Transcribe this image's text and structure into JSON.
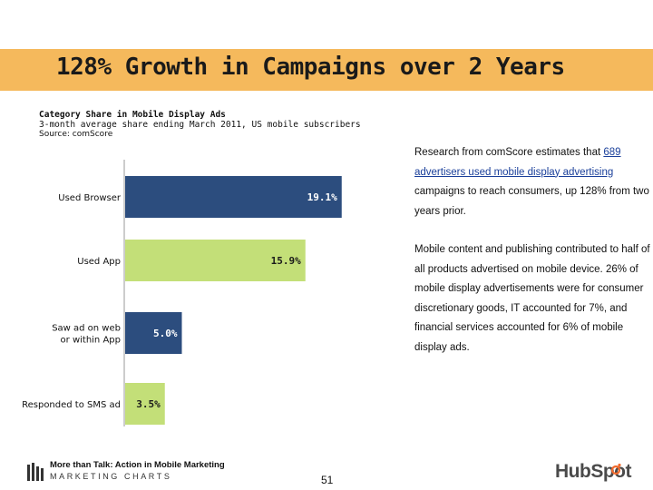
{
  "slide": {
    "title": "128% Growth in Campaigns over 2 Years",
    "subtitle_line1": "Category Share in Mobile Display Ads",
    "subtitle_line2": "3-month average share ending March 2011, US mobile subscribers",
    "source": "Source: comScore",
    "page_number": "51"
  },
  "description": {
    "p1_pre": "Research from comScore estimates that ",
    "p1_link": "689 advertisers used mobile display advertising",
    "p1_post": " campaigns to reach consumers, up 128% from two years prior.",
    "p2": "Mobile content and publishing contributed to half of all products advertised on mobile device. 26% of mobile display advertisements were for consumer discretionary goods, IT accounted for 7%, and financial services accounted for 6% of mobile display ads."
  },
  "footer": {
    "title": "More than Talk: Action in Mobile Marketing",
    "brand": "MARKETING CHARTS",
    "logo_text": "HubSpot",
    "brand_icon": "bars-logo-icon",
    "logo_icon": "sprocket-logo-icon"
  },
  "chart_data": {
    "type": "bar",
    "orientation": "horizontal",
    "categories": [
      "Used Browser",
      "Used App",
      "Saw ad on web or within App",
      "Responded to SMS ad"
    ],
    "values": [
      19.1,
      15.9,
      5.0,
      3.5
    ],
    "data_labels": [
      "19.1%",
      "15.9%",
      "5.0%",
      "3.5%"
    ],
    "colors": [
      "#2c4d7e",
      "#c3df78",
      "#2c4d7e",
      "#c3df78"
    ],
    "label_colors": [
      "#ffffff",
      "#1a1a1a",
      "#ffffff",
      "#1a1a1a"
    ],
    "category_lines": [
      [
        "Used Browser"
      ],
      [
        "Used App"
      ],
      [
        "Saw ad on web",
        "or within App"
      ],
      [
        "Responded to SMS ad"
      ]
    ],
    "xlim": [
      0,
      20
    ],
    "grid": false,
    "legend": "none"
  }
}
